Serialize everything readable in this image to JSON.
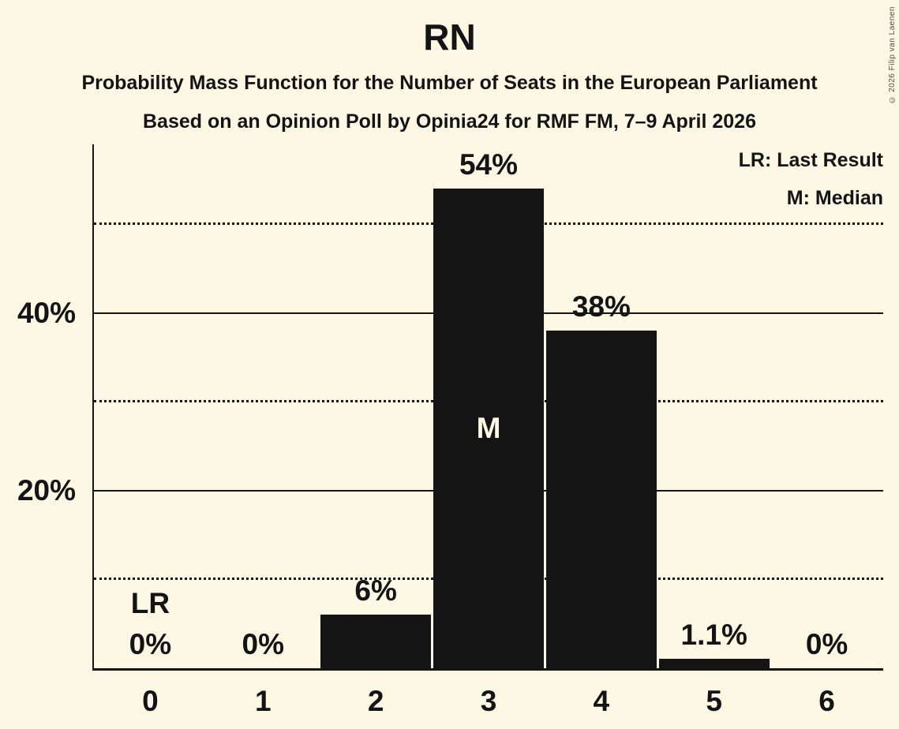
{
  "title": "RN",
  "subtitle1": "Probability Mass Function for the Number of Seats in the European Parliament",
  "subtitle2": "Based on an Opinion Poll by Opinia24 for RMF FM, 7–9 April 2026",
  "legend": {
    "lr": "LR: Last Result",
    "m": "M: Median"
  },
  "copyright": "© 2026 Filip van Laenen",
  "colors": {
    "background": "#FCF8E3",
    "ink": "#141414",
    "bar": "#141414",
    "inside_label": "#FCF8E3"
  },
  "chart_data": {
    "type": "bar",
    "title": "RN",
    "categories": [
      "0",
      "1",
      "2",
      "3",
      "4",
      "5",
      "6"
    ],
    "values": [
      0,
      0,
      6,
      54,
      38,
      1.1,
      0
    ],
    "bar_labels": [
      "0%",
      "0%",
      "6%",
      "54%",
      "38%",
      "1.1%",
      "0%"
    ],
    "ylim": [
      0,
      59
    ],
    "yticks": [
      {
        "value": 20,
        "label": "20%",
        "style": "solid"
      },
      {
        "value": 40,
        "label": "40%",
        "style": "solid"
      }
    ],
    "minor_gridlines": [
      {
        "value": 10,
        "style": "dotted"
      },
      {
        "value": 30,
        "style": "dotted"
      },
      {
        "value": 50,
        "style": "dotted"
      }
    ],
    "grid": "horizontal",
    "legend_position": "top-right",
    "annotations": [
      {
        "text": "LR",
        "category": "0",
        "placement": "above"
      },
      {
        "text": "M",
        "category": "3",
        "placement": "inside"
      }
    ]
  }
}
